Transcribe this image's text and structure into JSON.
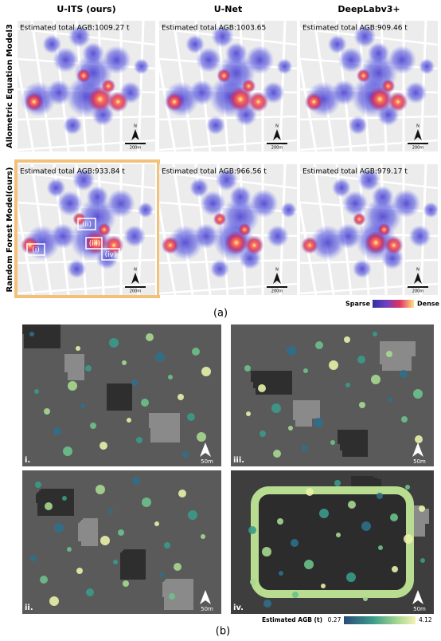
{
  "panel_a": {
    "label": "(a)",
    "columns": [
      "U-ITS (ours)",
      "U-Net",
      "DeepLabv3+"
    ],
    "rows": [
      {
        "label": "Allometric Equation Model3",
        "estimates": [
          "Estimated total AGB:1009.27 t",
          "Estimated total AGB:1003.65",
          "Estimated total AGB:909.46 t"
        ]
      },
      {
        "label": "Random Forest Model(ours)",
        "estimates": [
          "Estimated total AGB:933.84 t",
          "Estimated total AGB:966.56 t",
          "Estimated total AGB:979.17 t"
        ]
      }
    ],
    "regions": [
      "(i)",
      "(ii)",
      "(iii)",
      "(iv)"
    ],
    "north": "N",
    "scale": "200m",
    "legend": {
      "low": "Sparse",
      "high": "Dense"
    }
  },
  "panel_b": {
    "label": "(b)",
    "images": [
      "i.",
      "ii.",
      "iii.",
      "iv."
    ],
    "scale": "50m",
    "legend": {
      "title": "Estimated AGB (t)",
      "min": 0.27,
      "max": 4.12
    }
  }
}
